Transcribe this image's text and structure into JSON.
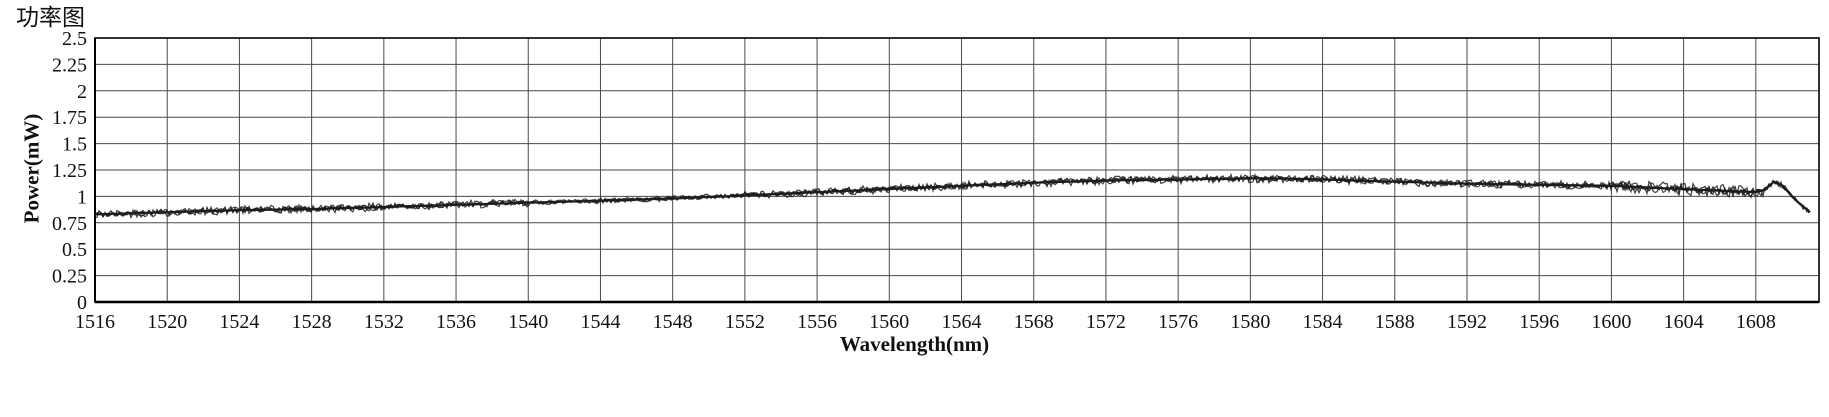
{
  "title": "功率图",
  "chart_data": {
    "type": "line",
    "title": "功率图",
    "xlabel": "Wavelength(nm)",
    "ylabel": "Power(mW)",
    "xlim": [
      1516,
      1611.5
    ],
    "ylim": [
      0,
      2.5
    ],
    "grid": true,
    "legend": "none",
    "line_color": "#1c1c1c",
    "grid_color": "#4a4a4a",
    "frame_color": "#000000",
    "noise_band_mw": 0.04,
    "x_ticks": [
      1516,
      1520,
      1524,
      1528,
      1532,
      1536,
      1540,
      1544,
      1548,
      1552,
      1556,
      1560,
      1564,
      1568,
      1572,
      1576,
      1580,
      1584,
      1588,
      1592,
      1596,
      1600,
      1604,
      1608
    ],
    "y_ticks": [
      0,
      0.25,
      0.5,
      0.75,
      1,
      1.25,
      1.5,
      1.75,
      2,
      2.25,
      2.5
    ],
    "y_tick_labels": [
      "0",
      "0.25",
      "0.5",
      "0.75",
      "1",
      "1.25",
      "1.5",
      "1.75",
      "2",
      "2.25",
      "2.5"
    ],
    "series": [
      {
        "name": "power",
        "x": [
          1516,
          1517,
          1518,
          1519,
          1520,
          1521,
          1522,
          1523,
          1524,
          1525,
          1526,
          1527,
          1528,
          1529,
          1530,
          1531,
          1532,
          1533,
          1534,
          1535,
          1536,
          1537,
          1538,
          1539,
          1540,
          1541,
          1542,
          1543,
          1544,
          1545,
          1546,
          1547,
          1548,
          1549,
          1550,
          1551,
          1552,
          1553,
          1554,
          1555,
          1556,
          1557,
          1558,
          1559,
          1560,
          1561,
          1562,
          1563,
          1564,
          1565,
          1566,
          1567,
          1568,
          1569,
          1570,
          1571,
          1572,
          1573,
          1574,
          1575,
          1576,
          1577,
          1578,
          1579,
          1580,
          1581,
          1582,
          1583,
          1584,
          1585,
          1586,
          1587,
          1588,
          1589,
          1590,
          1591,
          1592,
          1593,
          1594,
          1595,
          1596,
          1597,
          1598,
          1599,
          1600,
          1601,
          1602,
          1603,
          1604,
          1605,
          1606,
          1607,
          1608,
          1608.5,
          1609,
          1609.5,
          1610,
          1610.5,
          1611
        ],
        "y": [
          0.83,
          0.835,
          0.84,
          0.845,
          0.85,
          0.855,
          0.86,
          0.865,
          0.87,
          0.872,
          0.875,
          0.878,
          0.88,
          0.885,
          0.89,
          0.895,
          0.9,
          0.905,
          0.91,
          0.915,
          0.92,
          0.925,
          0.93,
          0.935,
          0.94,
          0.945,
          0.95,
          0.955,
          0.96,
          0.965,
          0.97,
          0.975,
          0.98,
          0.987,
          0.995,
          1.0,
          1.01,
          1.017,
          1.025,
          1.032,
          1.04,
          1.048,
          1.055,
          1.062,
          1.07,
          1.078,
          1.085,
          1.092,
          1.1,
          1.108,
          1.115,
          1.122,
          1.13,
          1.135,
          1.14,
          1.145,
          1.15,
          1.153,
          1.156,
          1.158,
          1.16,
          1.163,
          1.165,
          1.168,
          1.17,
          1.17,
          1.168,
          1.165,
          1.16,
          1.155,
          1.15,
          1.145,
          1.14,
          1.135,
          1.13,
          1.125,
          1.12,
          1.117,
          1.115,
          1.112,
          1.11,
          1.108,
          1.105,
          1.102,
          1.1,
          1.092,
          1.085,
          1.077,
          1.07,
          1.062,
          1.055,
          1.047,
          1.04,
          1.06,
          1.14,
          1.1,
          1.0,
          0.92,
          0.85
        ]
      }
    ]
  }
}
